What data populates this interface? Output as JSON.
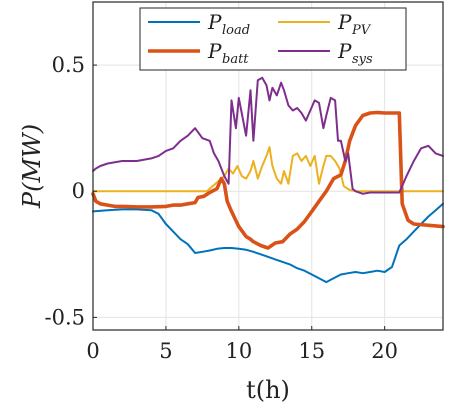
{
  "chart_data": {
    "type": "line",
    "title": "",
    "xlabel": "t(h)",
    "ylabel": "P(MW)",
    "xlim": [
      0,
      24
    ],
    "ylim": [
      -0.55,
      0.75
    ],
    "xticks": [
      0,
      5,
      10,
      15,
      20
    ],
    "xtick_labels": [
      "0",
      "5",
      "10",
      "15",
      "20"
    ],
    "yticks": [
      -0.5,
      0,
      0.5
    ],
    "ytick_labels": [
      "-0.5",
      "0",
      "0.5"
    ],
    "grid": true,
    "legend_position": "top",
    "series": [
      {
        "name": "P_load",
        "label_main": "P",
        "label_sub": "load",
        "color": "#0072BD",
        "width": 2,
        "x": [
          0,
          1,
          2,
          3,
          4,
          4.5,
          5,
          5.5,
          6,
          6.5,
          7,
          7.5,
          8,
          8.5,
          9,
          9.5,
          10,
          10.5,
          11,
          11.5,
          12,
          12.5,
          13,
          13.5,
          14,
          14.5,
          15,
          15.5,
          16,
          16.5,
          17,
          17.5,
          18,
          18.5,
          19,
          19.5,
          20,
          20.5,
          21,
          21.5,
          22,
          22.5,
          23,
          23.5,
          24
        ],
        "values": [
          -0.08,
          -0.075,
          -0.072,
          -0.072,
          -0.075,
          -0.09,
          -0.13,
          -0.16,
          -0.19,
          -0.21,
          -0.245,
          -0.24,
          -0.235,
          -0.228,
          -0.225,
          -0.225,
          -0.228,
          -0.232,
          -0.24,
          -0.25,
          -0.26,
          -0.27,
          -0.28,
          -0.29,
          -0.305,
          -0.315,
          -0.33,
          -0.345,
          -0.36,
          -0.345,
          -0.33,
          -0.325,
          -0.32,
          -0.325,
          -0.32,
          -0.315,
          -0.32,
          -0.3,
          -0.215,
          -0.19,
          -0.16,
          -0.13,
          -0.1,
          -0.075,
          -0.05
        ]
      },
      {
        "name": "P_PV",
        "label_main": "P",
        "label_sub": "PV",
        "color": "#EDB120",
        "width": 2,
        "x": [
          0,
          6,
          7.8,
          8.2,
          8.6,
          9.0,
          9.3,
          9.6,
          9.9,
          10.2,
          10.5,
          10.8,
          11.0,
          11.3,
          11.6,
          11.9,
          12.1,
          12.3,
          12.6,
          12.9,
          13.1,
          13.4,
          13.7,
          14.0,
          14.3,
          14.6,
          14.9,
          15.2,
          15.5,
          15.8,
          16.0,
          16.3,
          16.6,
          16.9,
          17.2,
          17.6,
          18.0,
          24
        ],
        "values": [
          0,
          0,
          0,
          0.02,
          0.04,
          0.06,
          0.09,
          0.07,
          0.1,
          0.06,
          0.05,
          0.08,
          0.12,
          0.05,
          0.1,
          0.14,
          0.175,
          0.1,
          0.05,
          0.03,
          0.08,
          0.03,
          0.14,
          0.15,
          0.12,
          0.14,
          0.1,
          0.14,
          0.03,
          0.1,
          0.14,
          0.14,
          0.12,
          0.09,
          0.02,
          0.005,
          0,
          0
        ]
      },
      {
        "name": "P_batt",
        "label_main": "P",
        "label_sub": "batt",
        "color": "#D95319",
        "width": 3.6,
        "x": [
          0,
          0.2,
          0.5,
          1.0,
          1.5,
          2.0,
          3.0,
          4.0,
          5.0,
          5.5,
          6.0,
          6.5,
          7.0,
          7.2,
          7.6,
          8.0,
          8.5,
          8.8,
          9.0,
          9.2,
          9.5,
          10.0,
          10.5,
          10.8,
          11.0,
          11.5,
          12.0,
          12.5,
          13.0,
          13.5,
          14.0,
          14.5,
          15.0,
          15.5,
          16.0,
          16.5,
          17.0,
          17.3,
          17.6,
          18.0,
          18.5,
          19.0,
          19.5,
          20.0,
          20.5,
          20.9,
          21.0,
          21.2,
          21.6,
          22.0,
          24
        ],
        "values": [
          -0.01,
          -0.04,
          -0.05,
          -0.055,
          -0.06,
          -0.06,
          -0.062,
          -0.062,
          -0.06,
          -0.055,
          -0.055,
          -0.05,
          -0.045,
          -0.025,
          -0.02,
          -0.005,
          0.01,
          0.05,
          0.03,
          -0.04,
          -0.08,
          -0.14,
          -0.18,
          -0.19,
          -0.2,
          -0.215,
          -0.225,
          -0.205,
          -0.2,
          -0.17,
          -0.15,
          -0.12,
          -0.08,
          -0.04,
          0,
          0.05,
          0.065,
          0.12,
          0.2,
          0.26,
          0.3,
          0.31,
          0.312,
          0.31,
          0.31,
          0.31,
          0.31,
          -0.05,
          -0.115,
          -0.13,
          -0.14
        ]
      },
      {
        "name": "P_sys",
        "label_main": "P",
        "label_sub": "sys",
        "color": "#7E2F8E",
        "width": 2,
        "x": [
          0,
          0.2,
          0.5,
          1.0,
          2.0,
          3.0,
          4.0,
          4.5,
          5.0,
          5.5,
          6.0,
          6.5,
          7.0,
          7.5,
          8.0,
          8.3,
          8.6,
          9.0,
          9.3,
          9.5,
          9.8,
          10.0,
          10.5,
          10.8,
          11.0,
          11.3,
          11.6,
          11.9,
          12.1,
          12.3,
          12.6,
          12.9,
          13.1,
          13.4,
          13.7,
          14.0,
          14.3,
          14.6,
          14.9,
          15.2,
          15.5,
          15.8,
          16.0,
          16.3,
          16.6,
          16.8,
          17.0,
          17.3,
          17.5,
          17.8,
          18.0,
          18.5,
          19.0,
          19.5,
          20.0,
          20.5,
          21.0,
          21.5,
          22.0,
          22.5,
          23.0,
          23.5,
          24
        ],
        "values": [
          0.08,
          0.09,
          0.1,
          0.11,
          0.12,
          0.12,
          0.13,
          0.14,
          0.16,
          0.17,
          0.2,
          0.22,
          0.25,
          0.21,
          0.2,
          0.15,
          0.12,
          0.06,
          0.03,
          0.36,
          0.25,
          0.37,
          0.22,
          0.4,
          0.2,
          0.44,
          0.45,
          0.42,
          0.36,
          0.41,
          0.38,
          0.43,
          0.4,
          0.34,
          0.32,
          0.33,
          0.31,
          0.28,
          0.32,
          0.36,
          0.35,
          0.25,
          0.3,
          0.37,
          0.36,
          0.2,
          0.2,
          0.12,
          0.15,
          0.01,
          0.0,
          -0.01,
          -0.005,
          -0.005,
          -0.005,
          -0.005,
          -0.005,
          0.06,
          0.12,
          0.17,
          0.18,
          0.15,
          0.14
        ]
      }
    ]
  }
}
